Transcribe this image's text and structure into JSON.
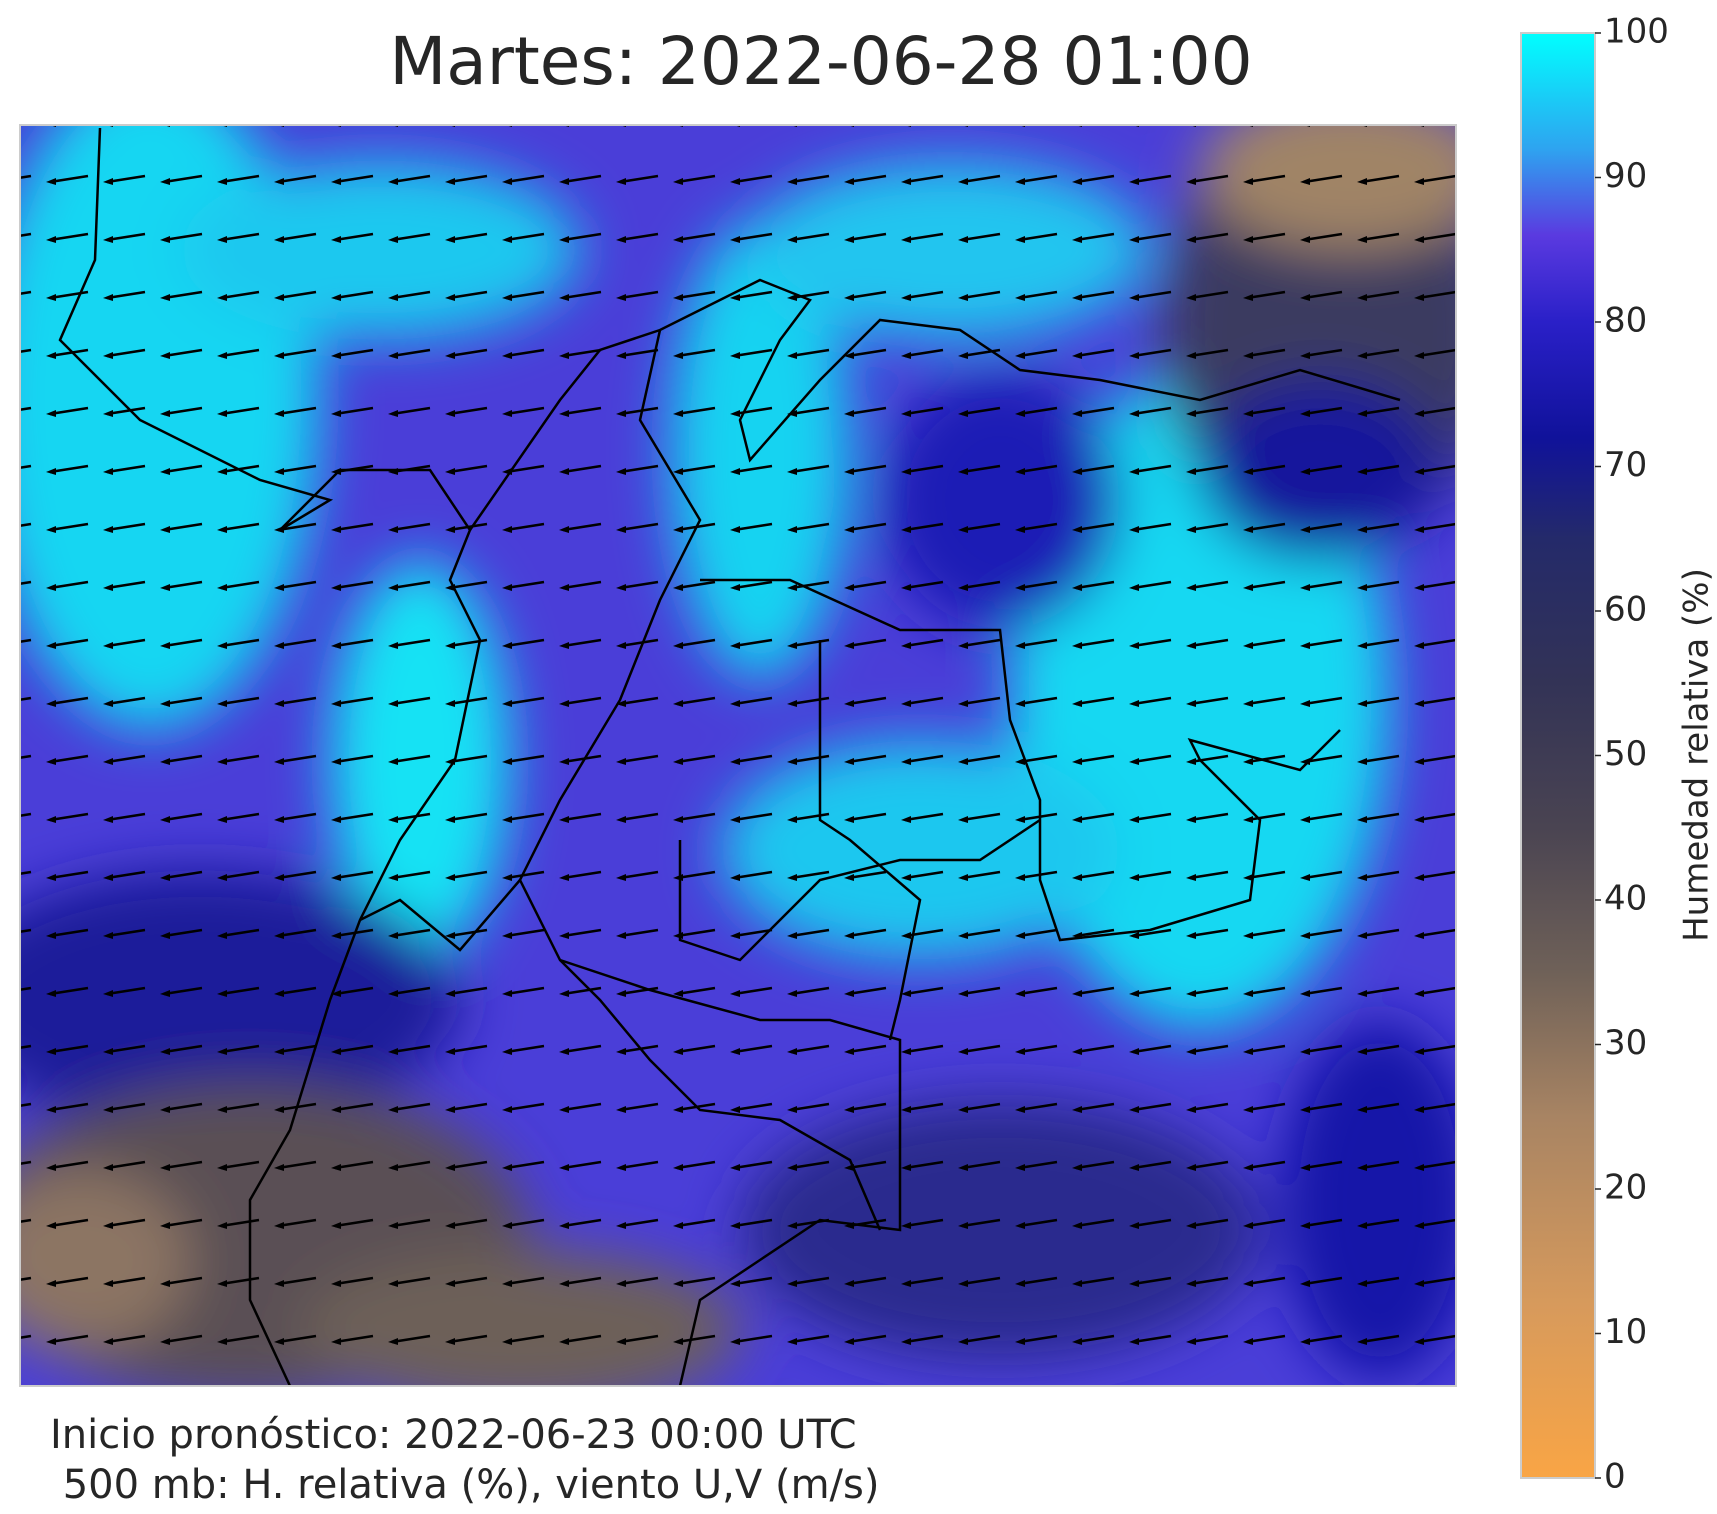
{
  "chart_data": {
    "type": "colormap",
    "title": "Martes: 2022-06-28 01:00",
    "footer": [
      "Inicio pronóstico: 2022-06-23 00:00 UTC",
      " 500 mb: H. relativa (%), viento U,V (m/s)"
    ],
    "colorbar_label": "Humedad relativa (%)",
    "ylim": [
      0,
      100
    ],
    "yticks": [
      0,
      10,
      20,
      30,
      40,
      50,
      60,
      70,
      80,
      90,
      100
    ]
  }
}
